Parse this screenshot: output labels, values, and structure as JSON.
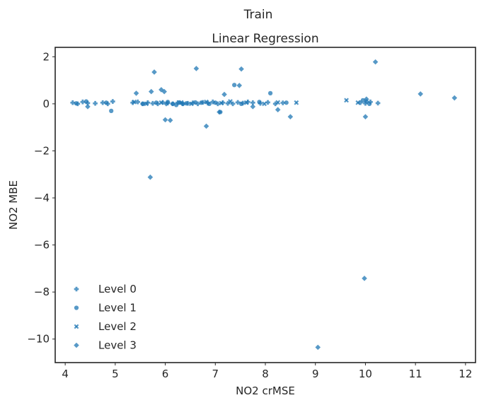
{
  "figure": {
    "suptitle": "Train"
  },
  "chart_data": {
    "type": "scatter",
    "title": "Linear Regression",
    "xlabel": "NO2 crMSE",
    "ylabel": "NO2 MBE",
    "xlim": [
      3.8,
      12.2
    ],
    "ylim": [
      -11,
      2.4
    ],
    "x_ticks": [
      4,
      5,
      6,
      7,
      8,
      9,
      10,
      11,
      12
    ],
    "y_ticks": [
      2,
      0,
      -2,
      -4,
      -6,
      -8,
      -10
    ],
    "x_tick_labels": [
      "4",
      "5",
      "6",
      "7",
      "8",
      "9",
      "10",
      "11",
      "12"
    ],
    "y_tick_labels": [
      "2",
      "0",
      "−2",
      "−4",
      "−6",
      "−8",
      "−10"
    ],
    "grid": false,
    "legend_position": "lower-left",
    "color": "#1f77b4",
    "series": [
      {
        "name": "Level 0",
        "marker": "plus",
        "x": [
          4.15,
          4.25,
          4.35,
          4.45,
          4.6,
          4.75,
          4.85,
          4.95,
          5.35,
          5.45,
          5.55,
          5.65,
          5.75,
          5.85,
          5.95,
          6.05,
          6.15,
          6.25,
          6.35,
          6.45,
          6.55,
          6.65,
          6.75,
          6.85,
          6.95,
          7.05,
          7.15,
          7.25,
          7.35,
          7.45,
          7.55,
          7.65,
          7.75,
          7.9,
          8.05,
          8.2,
          8.35,
          9.9,
          10.0,
          10.1,
          10.25
        ],
        "y": [
          0.05,
          0.0,
          0.08,
          0.03,
          0.02,
          0.05,
          0.0,
          0.1,
          0.05,
          0.08,
          0.0,
          0.05,
          0.02,
          0.0,
          0.06,
          0.03,
          0.0,
          0.05,
          0.0,
          0.02,
          0.04,
          0.0,
          0.06,
          0.03,
          0.08,
          0.0,
          0.05,
          0.02,
          0.0,
          0.06,
          0.03,
          0.08,
          0.05,
          0.02,
          0.06,
          0.0,
          0.04,
          0.05,
          0.02,
          0.08,
          0.03
        ]
      },
      {
        "name": "Level 1",
        "marker": "circle",
        "x": [
          4.22,
          4.42,
          4.82,
          4.92,
          5.55,
          5.82,
          6.05,
          6.15,
          6.22,
          6.28,
          6.35,
          6.42,
          6.6,
          6.72,
          6.88,
          7.0,
          7.1,
          7.38,
          7.52,
          7.88,
          8.1,
          8.42,
          9.95,
          10.02,
          10.08
        ],
        "y": [
          0.02,
          0.1,
          0.05,
          -0.3,
          0.0,
          0.05,
          0.08,
          0.0,
          -0.05,
          0.05,
          0.0,
          0.02,
          0.06,
          0.05,
          0.0,
          0.05,
          -0.35,
          0.8,
          0.0,
          0.08,
          0.45,
          0.05,
          0.15,
          0.1,
          0.0
        ]
      },
      {
        "name": "Level 2",
        "marker": "x",
        "x": [
          5.38,
          5.62,
          5.92,
          6.32,
          6.52,
          6.82,
          7.12,
          7.3,
          7.62,
          7.98,
          8.25,
          8.62,
          9.62,
          9.85
        ],
        "y": [
          0.08,
          0.0,
          0.05,
          0.06,
          0.0,
          0.08,
          0.03,
          0.1,
          0.05,
          0.0,
          0.06,
          0.05,
          0.15,
          0.05
        ]
      },
      {
        "name": "Level 3",
        "marker": "diamond",
        "x": [
          4.45,
          5.42,
          5.72,
          5.78,
          5.92,
          5.98,
          6.0,
          6.02,
          6.1,
          6.62,
          6.82,
          7.08,
          7.18,
          7.48,
          7.52,
          7.75,
          8.25,
          8.5,
          9.05,
          9.98,
          10.0,
          10.02,
          10.2,
          11.1,
          11.78,
          5.7
        ],
        "y": [
          -0.12,
          0.45,
          0.52,
          1.35,
          0.6,
          0.52,
          -0.68,
          0.0,
          -0.7,
          1.5,
          -0.95,
          -0.35,
          0.4,
          0.78,
          1.48,
          -0.12,
          -0.25,
          -0.55,
          -10.35,
          -7.42,
          -0.55,
          0.2,
          1.78,
          0.42,
          0.25,
          -3.12
        ]
      }
    ]
  }
}
